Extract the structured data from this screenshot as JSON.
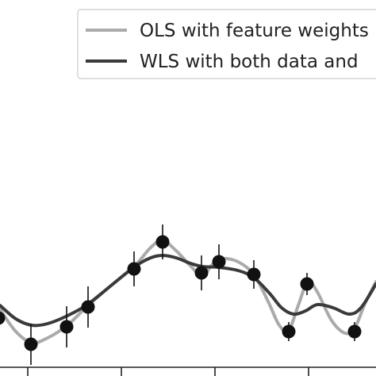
{
  "chart_data": {
    "type": "line",
    "title": "",
    "xlabel": "",
    "ylabel": "",
    "legend": {
      "placement": "top-right",
      "entries": [
        {
          "name": "OLS with feature weights",
          "color": "#aaaaaa"
        },
        {
          "name": "WLS with both data and",
          "color": "#3a3a3a"
        }
      ]
    },
    "grid": false,
    "xlim": [
      0,
      474
    ],
    "ylim": [
      0,
      474
    ],
    "x_ticks": [
      35,
      153,
      271,
      389
    ],
    "points": [
      {
        "x": -2,
        "y": 401,
        "err": 12
      },
      {
        "x": 39,
        "y": 434,
        "err": 26
      },
      {
        "x": 84,
        "y": 412,
        "err": 26
      },
      {
        "x": 111,
        "y": 387,
        "err": 26
      },
      {
        "x": 169,
        "y": 339,
        "err": 22
      },
      {
        "x": 205,
        "y": 305,
        "err": 22
      },
      {
        "x": 254,
        "y": 344,
        "err": 22
      },
      {
        "x": 276,
        "y": 330,
        "err": 22
      },
      {
        "x": 320,
        "y": 346,
        "err": 18
      },
      {
        "x": 364,
        "y": 418,
        "err": 12
      },
      {
        "x": 387,
        "y": 358,
        "err": 14
      },
      {
        "x": 447,
        "y": 418,
        "err": 12
      }
    ],
    "series": [
      {
        "name": "OLS with feature weights",
        "color": "#aaaaaa",
        "x": [
          0,
          20,
          40,
          60,
          85,
          110,
          140,
          170,
          190,
          205,
          222,
          240,
          255,
          268,
          280,
          300,
          320,
          338,
          352,
          364,
          376,
          388,
          400,
          418,
          435,
          447,
          460,
          474
        ],
        "y": [
          390,
          418,
          432,
          426,
          410,
          386,
          360,
          335,
          312,
          303,
          316,
          335,
          348,
          333,
          326,
          330,
          346,
          380,
          410,
          416,
          385,
          355,
          368,
          404,
          420,
          414,
          383,
          355
        ]
      },
      {
        "name": "WLS with both data and",
        "color": "#3a3a3a",
        "x": [
          0,
          20,
          40,
          60,
          85,
          110,
          140,
          170,
          190,
          205,
          222,
          240,
          255,
          275,
          300,
          320,
          340,
          355,
          370,
          385,
          400,
          420,
          440,
          455,
          474
        ],
        "y": [
          385,
          402,
          410,
          408,
          398,
          384,
          360,
          336,
          325,
          322,
          325,
          332,
          336,
          337,
          341,
          350,
          370,
          388,
          396,
          392,
          384,
          388,
          396,
          388,
          358
        ]
      }
    ]
  }
}
